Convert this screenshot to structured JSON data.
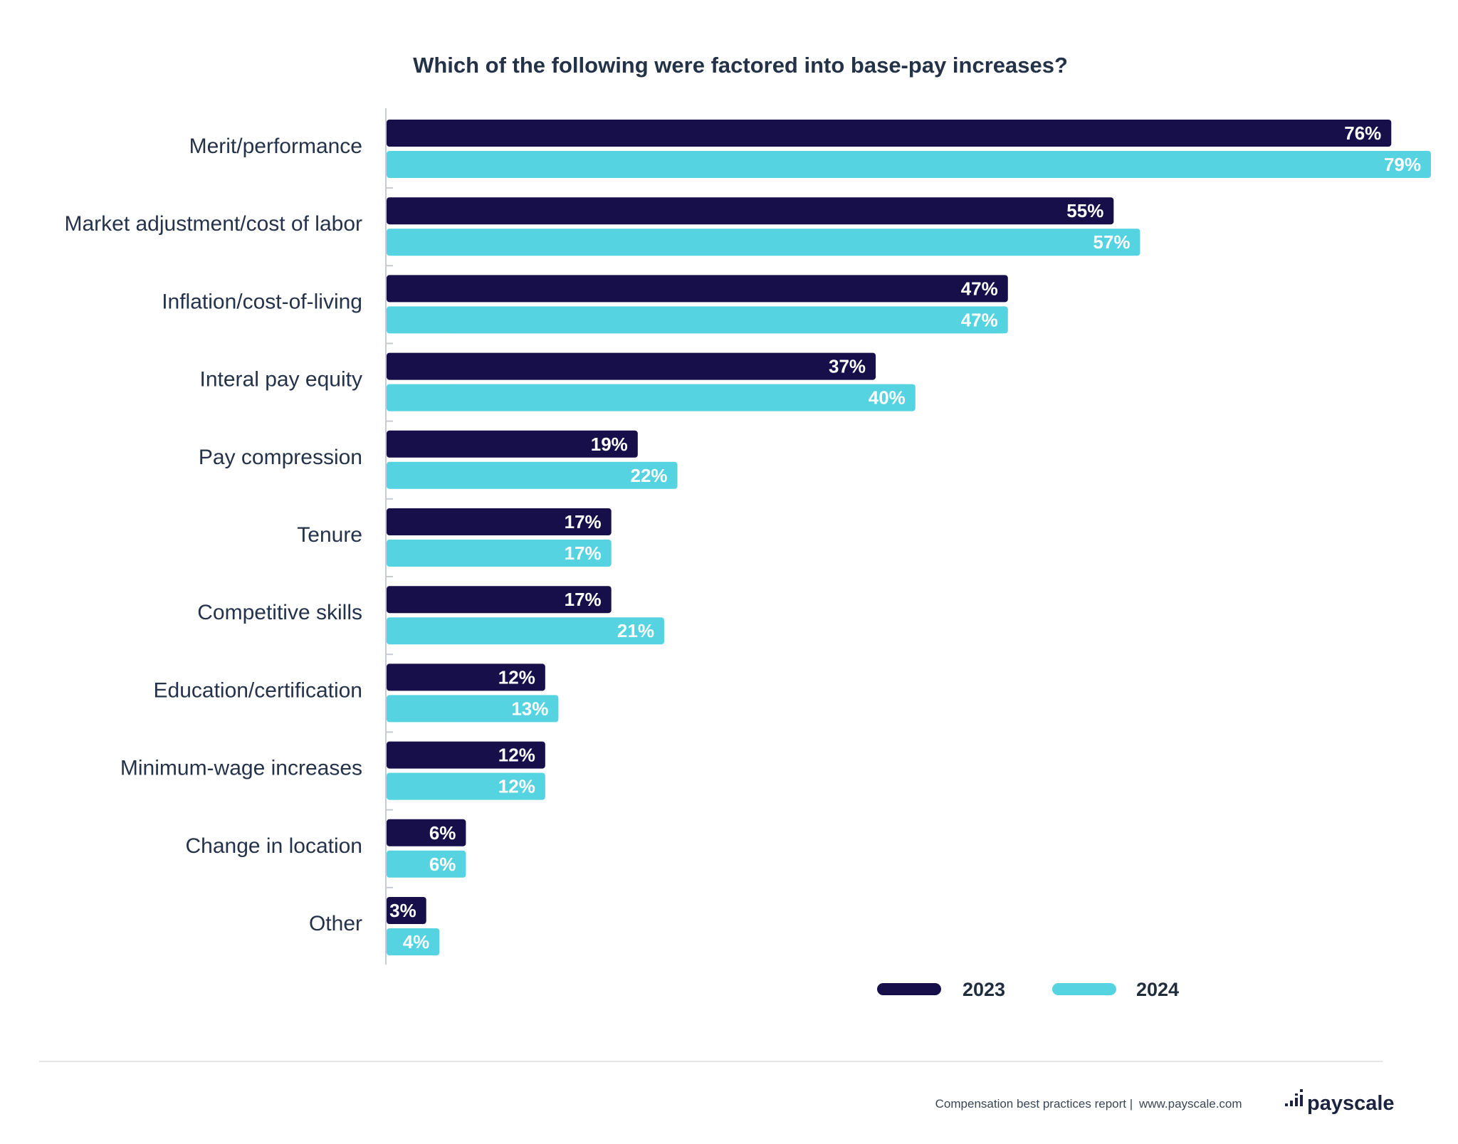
{
  "colors": {
    "series_2023": "#170f4a",
    "series_2024": "#55d3e0",
    "axis": "#c8ccd2",
    "divider": "#e4e6ea"
  },
  "chart_data": {
    "type": "bar",
    "orientation": "horizontal",
    "title": "Which of the following were factored into base-pay increases?",
    "categories": [
      "Merit/performance",
      "Market adjustment/cost of labor",
      "Inflation/cost-of-living",
      "Interal pay equity",
      "Pay compression",
      "Tenure",
      "Competitive skills",
      "Education/certification",
      "Minimum-wage increases",
      "Change in location",
      "Other"
    ],
    "series": [
      {
        "name": "2023",
        "values": [
          76,
          55,
          47,
          37,
          19,
          17,
          17,
          12,
          12,
          6,
          3
        ]
      },
      {
        "name": "2024",
        "values": [
          79,
          57,
          47,
          40,
          22,
          17,
          21,
          13,
          12,
          6,
          4
        ]
      }
    ],
    "value_format": "percent",
    "xlim": [
      0,
      79
    ],
    "grid": false,
    "legend_position": "bottom-right"
  },
  "footer": {
    "report_text": "Compensation best practices report",
    "separator": "|",
    "url": "www.payscale.com",
    "brand": "payscale",
    "logo_icon": "payscale-dots-logo-icon"
  }
}
